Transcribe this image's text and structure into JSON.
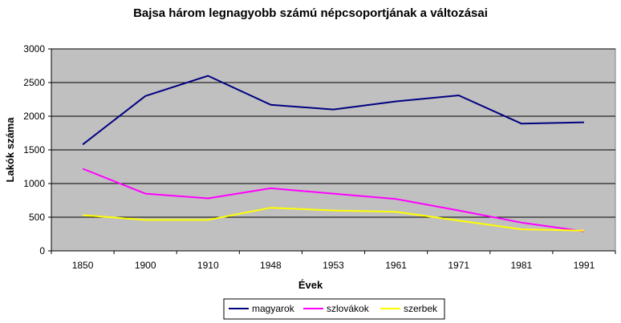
{
  "chart_data": {
    "type": "line",
    "title": "Bajsa három legnagyobb számú népcsoportjának a változásai",
    "xlabel": "Évek",
    "ylabel": "Lakók száma",
    "categories": [
      "1850",
      "1900",
      "1910",
      "1948",
      "1953",
      "1961",
      "1971",
      "1981",
      "1991"
    ],
    "ylim": [
      0,
      3000
    ],
    "yticks": [
      "0",
      "500",
      "1000",
      "1500",
      "2000",
      "2500",
      "3000"
    ],
    "grid": true,
    "legend_position": "bottom",
    "plot_background": "#C0C0C0",
    "series": [
      {
        "name": "magyarok",
        "color": "#000080",
        "values": [
          1580,
          2300,
          2600,
          2170,
          2100,
          2220,
          2310,
          1890,
          1910
        ]
      },
      {
        "name": "szlovákok",
        "color": "#FF00FF",
        "values": [
          1220,
          850,
          780,
          930,
          850,
          770,
          600,
          420,
          290
        ]
      },
      {
        "name": "szerbek",
        "color": "#FFFF00",
        "values": [
          530,
          460,
          460,
          640,
          600,
          580,
          450,
          320,
          300
        ]
      }
    ]
  }
}
